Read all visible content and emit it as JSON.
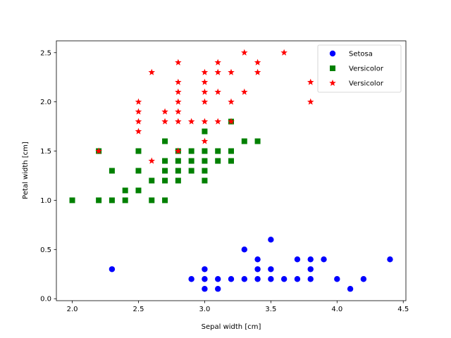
{
  "chart_data": {
    "type": "scatter",
    "title": "",
    "xlabel": "Sepal width [cm]",
    "ylabel": "Petal width [cm]",
    "xlim": [
      1.88,
      4.52
    ],
    "ylim": [
      -0.02,
      2.62
    ],
    "xticks": [
      2.0,
      2.5,
      3.0,
      3.5,
      4.0,
      4.5
    ],
    "xtick_labels": [
      "2.0",
      "2.5",
      "3.0",
      "3.5",
      "4.0",
      "4.5"
    ],
    "yticks": [
      0.0,
      0.5,
      1.0,
      1.5,
      2.0,
      2.5
    ],
    "ytick_labels": [
      "0.0",
      "0.5",
      "1.0",
      "1.5",
      "2.0",
      "2.5"
    ],
    "grid": false,
    "legend_position": "top-right",
    "series": [
      {
        "name": "Setosa",
        "marker": "circle",
        "color": "#0000ff",
        "points": [
          [
            2.3,
            0.3
          ],
          [
            2.9,
            0.2
          ],
          [
            3.0,
            0.3
          ],
          [
            3.0,
            0.2
          ],
          [
            3.0,
            0.1
          ],
          [
            3.1,
            0.2
          ],
          [
            3.1,
            0.1
          ],
          [
            3.2,
            0.2
          ],
          [
            3.3,
            0.5
          ],
          [
            3.3,
            0.2
          ],
          [
            3.4,
            0.4
          ],
          [
            3.4,
            0.3
          ],
          [
            3.4,
            0.2
          ],
          [
            3.5,
            0.6
          ],
          [
            3.5,
            0.3
          ],
          [
            3.5,
            0.2
          ],
          [
            3.6,
            0.2
          ],
          [
            3.7,
            0.4
          ],
          [
            3.7,
            0.2
          ],
          [
            3.8,
            0.4
          ],
          [
            3.8,
            0.3
          ],
          [
            3.8,
            0.2
          ],
          [
            3.9,
            0.4
          ],
          [
            4.0,
            0.2
          ],
          [
            4.1,
            0.1
          ],
          [
            4.2,
            0.2
          ],
          [
            4.4,
            0.4
          ]
        ]
      },
      {
        "name": "Versicolor",
        "marker": "square",
        "color": "#008000",
        "points": [
          [
            2.0,
            1.0
          ],
          [
            2.2,
            1.5
          ],
          [
            2.2,
            1.0
          ],
          [
            2.3,
            1.3
          ],
          [
            2.3,
            1.0
          ],
          [
            2.4,
            1.1
          ],
          [
            2.4,
            1.0
          ],
          [
            2.5,
            1.5
          ],
          [
            2.5,
            1.3
          ],
          [
            2.5,
            1.1
          ],
          [
            2.6,
            1.2
          ],
          [
            2.6,
            1.0
          ],
          [
            2.7,
            1.6
          ],
          [
            2.7,
            1.4
          ],
          [
            2.7,
            1.3
          ],
          [
            2.7,
            1.2
          ],
          [
            2.7,
            1.0
          ],
          [
            2.8,
            1.5
          ],
          [
            2.8,
            1.4
          ],
          [
            2.8,
            1.3
          ],
          [
            2.8,
            1.2
          ],
          [
            2.9,
            1.5
          ],
          [
            2.9,
            1.4
          ],
          [
            2.9,
            1.3
          ],
          [
            3.0,
            1.7
          ],
          [
            3.0,
            1.5
          ],
          [
            3.0,
            1.4
          ],
          [
            3.0,
            1.3
          ],
          [
            3.0,
            1.2
          ],
          [
            3.1,
            1.5
          ],
          [
            3.1,
            1.4
          ],
          [
            3.2,
            1.8
          ],
          [
            3.2,
            1.5
          ],
          [
            3.2,
            1.4
          ],
          [
            3.3,
            1.6
          ],
          [
            3.4,
            1.6
          ]
        ]
      },
      {
        "name": "Versicolor",
        "marker": "star",
        "color": "#ff0000",
        "points": [
          [
            2.2,
            1.5
          ],
          [
            2.5,
            2.0
          ],
          [
            2.5,
            1.9
          ],
          [
            2.5,
            1.8
          ],
          [
            2.5,
            1.7
          ],
          [
            2.6,
            2.3
          ],
          [
            2.6,
            1.4
          ],
          [
            2.7,
            1.9
          ],
          [
            2.7,
            1.8
          ],
          [
            2.8,
            2.4
          ],
          [
            2.8,
            2.2
          ],
          [
            2.8,
            2.1
          ],
          [
            2.8,
            2.0
          ],
          [
            2.8,
            1.9
          ],
          [
            2.8,
            1.8
          ],
          [
            2.8,
            1.5
          ],
          [
            2.9,
            1.8
          ],
          [
            3.0,
            2.3
          ],
          [
            3.0,
            2.2
          ],
          [
            3.0,
            2.1
          ],
          [
            3.0,
            2.0
          ],
          [
            3.0,
            1.8
          ],
          [
            3.0,
            1.6
          ],
          [
            3.1,
            2.4
          ],
          [
            3.1,
            2.3
          ],
          [
            3.1,
            2.1
          ],
          [
            3.1,
            1.8
          ],
          [
            3.2,
            2.3
          ],
          [
            3.2,
            2.0
          ],
          [
            3.2,
            1.8
          ],
          [
            3.3,
            2.5
          ],
          [
            3.3,
            2.1
          ],
          [
            3.4,
            2.4
          ],
          [
            3.4,
            2.3
          ],
          [
            3.6,
            2.5
          ],
          [
            3.8,
            2.2
          ],
          [
            3.8,
            2.0
          ]
        ]
      }
    ]
  }
}
